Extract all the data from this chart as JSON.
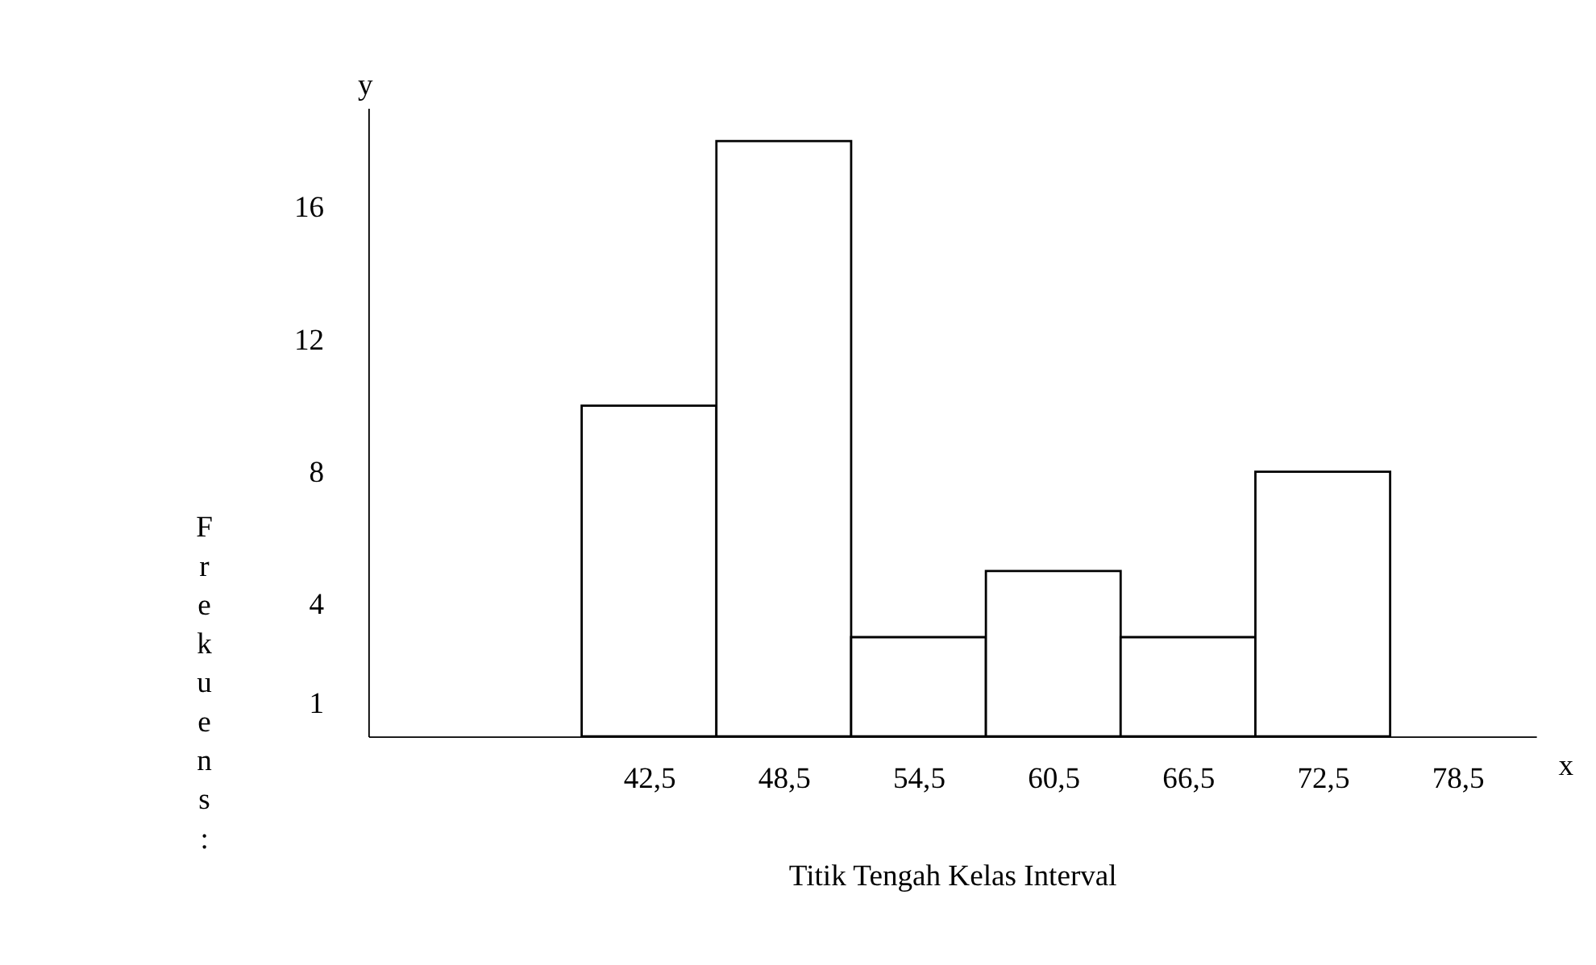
{
  "chart_data": {
    "type": "histogram",
    "xlabel": "Titik Tengah Kelas Interval",
    "ylabel": "Frekuens:",
    "annotations": [
      "y",
      "x"
    ],
    "bins": [
      39.5,
      45.5,
      51.5,
      57.5,
      63.5,
      69.5,
      75.5
    ],
    "values": [
      10,
      18,
      3,
      5,
      3,
      8
    ],
    "color": "#ffffff",
    "xlim": [
      30,
      82
    ],
    "xticks": [
      {
        "value": 42.5,
        "label": "42,5"
      },
      {
        "value": 48.5,
        "label": "48,5"
      },
      {
        "value": 54.5,
        "label": "54,5"
      },
      {
        "value": 60.5,
        "label": "60,5"
      },
      {
        "value": 66.5,
        "label": "66,5"
      },
      {
        "value": 72.5,
        "label": "72,5"
      },
      {
        "value": 78.5,
        "label": "78,5"
      }
    ],
    "ylim": [
      0,
      19
    ],
    "yticks": [
      1,
      4,
      8,
      12,
      16
    ],
    "grid": false
  }
}
